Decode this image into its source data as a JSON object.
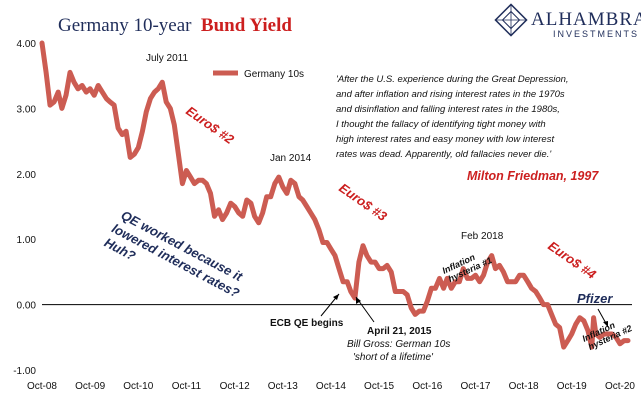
{
  "title": {
    "part1": "Germany 10-year",
    "part2": "Bund Yield"
  },
  "brand": {
    "name": "ALHAMBRA",
    "sub": "INVESTMENTS"
  },
  "colors": {
    "series": "#cc5c52",
    "accent_red": "#cc1f1f",
    "navy": "#1f2d5a",
    "zero_line": "#000000"
  },
  "chart_data": {
    "type": "line",
    "series": [
      {
        "name": "Germany 10s",
        "points": [
          [
            "2008-10-01",
            4.0
          ],
          [
            "2008-11-01",
            3.55
          ],
          [
            "2008-12-01",
            3.05
          ],
          [
            "2009-01-01",
            3.1
          ],
          [
            "2009-02-01",
            3.25
          ],
          [
            "2009-03-01",
            3.0
          ],
          [
            "2009-04-01",
            3.2
          ],
          [
            "2009-05-01",
            3.55
          ],
          [
            "2009-06-01",
            3.4
          ],
          [
            "2009-07-01",
            3.3
          ],
          [
            "2009-08-01",
            3.35
          ],
          [
            "2009-09-01",
            3.25
          ],
          [
            "2009-10-01",
            3.3
          ],
          [
            "2009-11-01",
            3.2
          ],
          [
            "2009-12-01",
            3.35
          ],
          [
            "2010-01-01",
            3.25
          ],
          [
            "2010-02-01",
            3.15
          ],
          [
            "2010-03-01",
            3.1
          ],
          [
            "2010-04-01",
            3.05
          ],
          [
            "2010-05-01",
            2.7
          ],
          [
            "2010-06-01",
            2.6
          ],
          [
            "2010-07-01",
            2.65
          ],
          [
            "2010-08-01",
            2.25
          ],
          [
            "2010-09-01",
            2.3
          ],
          [
            "2010-10-01",
            2.4
          ],
          [
            "2010-11-01",
            2.65
          ],
          [
            "2010-12-01",
            2.95
          ],
          [
            "2011-01-01",
            3.15
          ],
          [
            "2011-02-01",
            3.25
          ],
          [
            "2011-03-01",
            3.3
          ],
          [
            "2011-04-01",
            3.4
          ],
          [
            "2011-05-01",
            3.1
          ],
          [
            "2011-06-01",
            3.0
          ],
          [
            "2011-07-01",
            2.75
          ],
          [
            "2011-08-01",
            2.3
          ],
          [
            "2011-09-01",
            1.85
          ],
          [
            "2011-10-01",
            2.05
          ],
          [
            "2011-11-01",
            1.95
          ],
          [
            "2011-12-01",
            1.85
          ],
          [
            "2012-01-01",
            1.9
          ],
          [
            "2012-02-01",
            1.9
          ],
          [
            "2012-03-01",
            1.85
          ],
          [
            "2012-04-01",
            1.7
          ],
          [
            "2012-05-01",
            1.35
          ],
          [
            "2012-06-01",
            1.45
          ],
          [
            "2012-07-01",
            1.3
          ],
          [
            "2012-08-01",
            1.4
          ],
          [
            "2012-09-01",
            1.55
          ],
          [
            "2012-10-01",
            1.5
          ],
          [
            "2012-11-01",
            1.4
          ],
          [
            "2012-12-01",
            1.35
          ],
          [
            "2013-01-01",
            1.6
          ],
          [
            "2013-02-01",
            1.55
          ],
          [
            "2013-03-01",
            1.35
          ],
          [
            "2013-04-01",
            1.25
          ],
          [
            "2013-05-01",
            1.4
          ],
          [
            "2013-06-01",
            1.65
          ],
          [
            "2013-07-01",
            1.65
          ],
          [
            "2013-08-01",
            1.85
          ],
          [
            "2013-09-01",
            1.95
          ],
          [
            "2013-10-01",
            1.8
          ],
          [
            "2013-11-01",
            1.7
          ],
          [
            "2013-12-01",
            1.9
          ],
          [
            "2014-01-01",
            1.85
          ],
          [
            "2014-02-01",
            1.65
          ],
          [
            "2014-03-01",
            1.6
          ],
          [
            "2014-04-01",
            1.5
          ],
          [
            "2014-05-01",
            1.4
          ],
          [
            "2014-06-01",
            1.3
          ],
          [
            "2014-07-01",
            1.15
          ],
          [
            "2014-08-01",
            0.95
          ],
          [
            "2014-09-01",
            0.95
          ],
          [
            "2014-10-01",
            0.85
          ],
          [
            "2014-11-01",
            0.75
          ],
          [
            "2014-12-01",
            0.55
          ],
          [
            "2015-01-01",
            0.35
          ],
          [
            "2015-02-01",
            0.35
          ],
          [
            "2015-03-01",
            0.2
          ],
          [
            "2015-04-01",
            0.1
          ],
          [
            "2015-05-01",
            0.65
          ],
          [
            "2015-06-01",
            0.9
          ],
          [
            "2015-07-01",
            0.75
          ],
          [
            "2015-08-01",
            0.65
          ],
          [
            "2015-09-01",
            0.65
          ],
          [
            "2015-10-01",
            0.55
          ],
          [
            "2015-11-01",
            0.55
          ],
          [
            "2015-12-01",
            0.6
          ],
          [
            "2016-01-01",
            0.5
          ],
          [
            "2016-02-01",
            0.2
          ],
          [
            "2016-03-01",
            0.2
          ],
          [
            "2016-04-01",
            0.2
          ],
          [
            "2016-05-01",
            0.15
          ],
          [
            "2016-06-01",
            -0.05
          ],
          [
            "2016-07-01",
            -0.15
          ],
          [
            "2016-08-01",
            -0.1
          ],
          [
            "2016-09-01",
            -0.1
          ],
          [
            "2016-10-01",
            0.05
          ],
          [
            "2016-11-01",
            0.25
          ],
          [
            "2016-12-01",
            0.25
          ],
          [
            "2017-01-01",
            0.4
          ],
          [
            "2017-02-01",
            0.25
          ],
          [
            "2017-03-01",
            0.4
          ],
          [
            "2017-04-01",
            0.25
          ],
          [
            "2017-05-01",
            0.35
          ],
          [
            "2017-06-01",
            0.35
          ],
          [
            "2017-07-01",
            0.55
          ],
          [
            "2017-08-01",
            0.4
          ],
          [
            "2017-09-01",
            0.4
          ],
          [
            "2017-10-01",
            0.45
          ],
          [
            "2017-11-01",
            0.35
          ],
          [
            "2017-12-01",
            0.45
          ],
          [
            "2018-01-01",
            0.65
          ],
          [
            "2018-02-01",
            0.75
          ],
          [
            "2018-03-01",
            0.55
          ],
          [
            "2018-04-01",
            0.6
          ],
          [
            "2018-05-01",
            0.5
          ],
          [
            "2018-06-01",
            0.35
          ],
          [
            "2018-07-01",
            0.35
          ],
          [
            "2018-08-01",
            0.35
          ],
          [
            "2018-09-01",
            0.45
          ],
          [
            "2018-10-01",
            0.45
          ],
          [
            "2018-11-01",
            0.35
          ],
          [
            "2018-12-01",
            0.25
          ],
          [
            "2019-01-01",
            0.2
          ],
          [
            "2019-02-01",
            0.1
          ],
          [
            "2019-03-01",
            0.0
          ],
          [
            "2019-04-01",
            0.0
          ],
          [
            "2019-05-01",
            -0.15
          ],
          [
            "2019-06-01",
            -0.3
          ],
          [
            "2019-07-01",
            -0.35
          ],
          [
            "2019-08-01",
            -0.65
          ],
          [
            "2019-09-01",
            -0.55
          ],
          [
            "2019-10-01",
            -0.45
          ],
          [
            "2019-11-01",
            -0.3
          ],
          [
            "2019-12-01",
            -0.2
          ],
          [
            "2020-01-01",
            -0.25
          ],
          [
            "2020-02-01",
            -0.4
          ],
          [
            "2020-03-01",
            -0.65
          ],
          [
            "2020-03-15",
            -0.2
          ],
          [
            "2020-04-01",
            -0.45
          ],
          [
            "2020-05-01",
            -0.5
          ],
          [
            "2020-06-01",
            -0.45
          ],
          [
            "2020-07-01",
            -0.45
          ],
          [
            "2020-08-01",
            -0.45
          ],
          [
            "2020-09-01",
            -0.5
          ],
          [
            "2020-10-01",
            -0.6
          ],
          [
            "2020-11-01",
            -0.55
          ],
          [
            "2020-12-01",
            -0.55
          ]
        ]
      }
    ],
    "x_ticks": [
      "Oct-08",
      "Oct-09",
      "Oct-10",
      "Oct-11",
      "Oct-12",
      "Oct-13",
      "Oct-14",
      "Oct-15",
      "Oct-16",
      "Oct-17",
      "Oct-18",
      "Oct-19",
      "Oct-20"
    ],
    "y_ticks": [
      "4.00",
      "3.00",
      "2.00",
      "1.00",
      "0.00",
      "-1.00"
    ],
    "ylim": [
      -1.0,
      4.0
    ],
    "xlim": [
      "2008-10-01",
      "2020-12-31"
    ],
    "legend": {
      "label": "Germany 10s",
      "placement": "top-left"
    },
    "annotations": {
      "july2011": "July 2011",
      "jan2014": "Jan 2014",
      "feb2018": "Feb 2018",
      "euro2": "Euro$ #2",
      "euro3": "Euro$ #3",
      "euro4": "Euro$ #4",
      "qe": [
        "QE worked because it",
        "lowered interest rates?",
        "Huh?"
      ],
      "ecb": "ECB QE begins",
      "april": "April 21, 2015",
      "gross": [
        "Bill Gross: German 10s",
        "'short of a lifetime'"
      ],
      "hyst1": [
        "Inflation",
        "hysteria #1"
      ],
      "hyst2": [
        "Inflation",
        "hysteria #2"
      ],
      "pfizer": "Pfizer",
      "quote": [
        "'After the U.S. experience during the Great Depression,",
        "and after inflation and rising interest rates in the 1970s",
        "and disinflation and falling interest rates in the 1980s,",
        "I thought the fallacy of identifying tight money with",
        "high interest rates and  easy money with low interest",
        "rates was dead. Apparently, old fallacies never die.'"
      ],
      "quote_author": "Milton Friedman, 1997"
    }
  }
}
